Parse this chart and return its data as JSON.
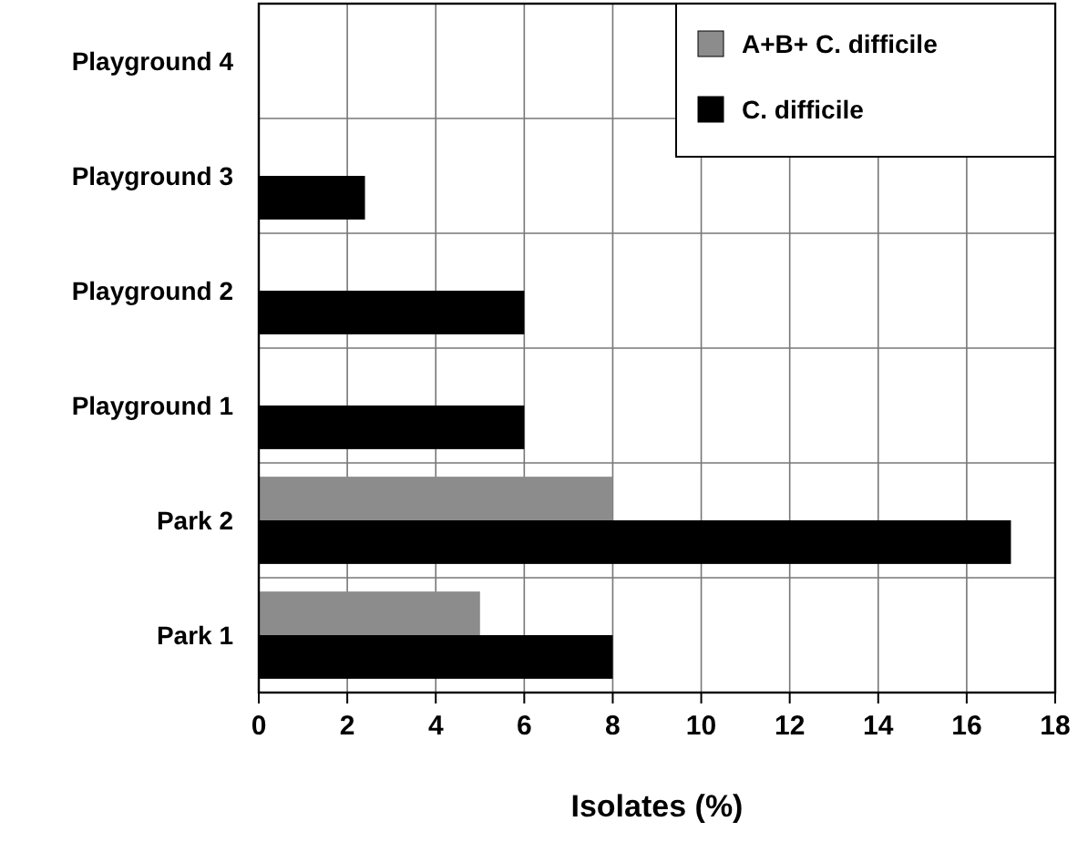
{
  "chart_data": {
    "type": "bar",
    "orientation": "horizontal",
    "xlabel": "Isolates (%)",
    "categories": [
      "Playground 4",
      "Playground 3",
      "Playground 2",
      "Playground 1",
      "Park 2",
      "Park 1"
    ],
    "series": [
      {
        "name": "A+B+ C. difficile",
        "color": "#8c8c8c",
        "values": [
          0,
          0,
          0,
          0,
          8,
          5
        ]
      },
      {
        "name": "C. difficile",
        "color": "#000000",
        "values": [
          0,
          2.4,
          6,
          6,
          17,
          8
        ]
      }
    ],
    "xlim": [
      0,
      18
    ],
    "xticks": [
      0,
      2,
      4,
      6,
      8,
      10,
      12,
      14,
      16,
      18
    ],
    "grid": true,
    "legend": "top right"
  }
}
